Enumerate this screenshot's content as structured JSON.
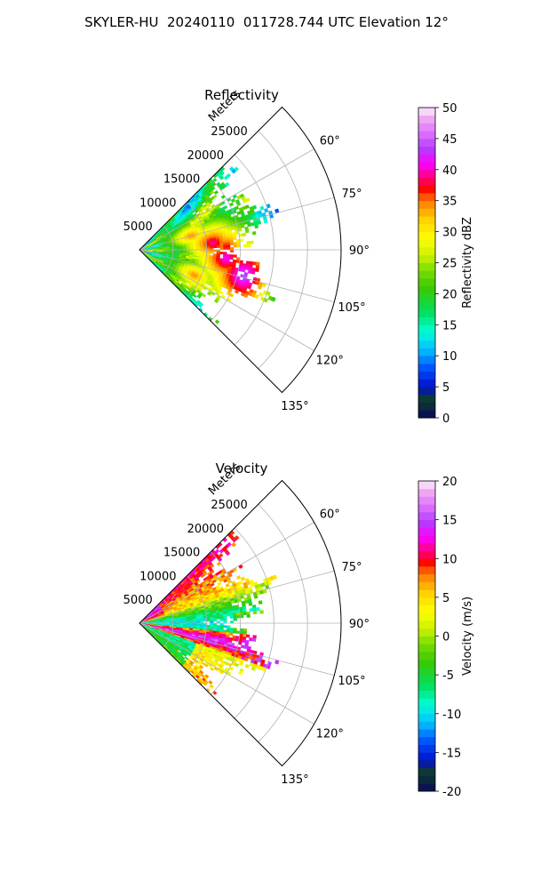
{
  "figure_title": "SKYLER-HU  20240110  011728.744 UTC Elevation 12°",
  "chart_data": [
    {
      "type": "heatmap",
      "subtype": "polar-sector radar PPI",
      "title": "Reflectivity",
      "range_label": "Meters",
      "range_ticks": [
        5000,
        10000,
        15000,
        20000,
        25000
      ],
      "range_max": 30000,
      "azimuth_range": [
        45,
        135
      ],
      "azimuth_ticks": [
        "60°",
        "75°",
        "90°",
        "105°",
        "120°",
        "135°"
      ],
      "grid": true,
      "colorbar": {
        "label": "Reflectivity dBZ",
        "range": [
          0,
          50
        ],
        "ticks": [
          "0",
          "5",
          "10",
          "15",
          "20",
          "25",
          "30",
          "35",
          "40",
          "45",
          "50"
        ],
        "stops": [
          [
            0,
            "#0a0a5a"
          ],
          [
            0.06,
            "#0f3b2a"
          ],
          [
            0.1,
            "#0010cc"
          ],
          [
            0.16,
            "#0050ff"
          ],
          [
            0.22,
            "#00bfff"
          ],
          [
            0.28,
            "#00ffd5"
          ],
          [
            0.34,
            "#00e060"
          ],
          [
            0.42,
            "#3cc800"
          ],
          [
            0.48,
            "#7ee000"
          ],
          [
            0.52,
            "#c8f000"
          ],
          [
            0.58,
            "#ffff00"
          ],
          [
            0.64,
            "#ffd000"
          ],
          [
            0.7,
            "#ff7a00"
          ],
          [
            0.74,
            "#ff0000"
          ],
          [
            0.77,
            "#ff0070"
          ],
          [
            0.82,
            "#ff00ff"
          ],
          [
            0.87,
            "#b040ff"
          ],
          [
            0.92,
            "#e070ff"
          ],
          [
            0.97,
            "#f0b0f0"
          ],
          [
            1,
            "#fff0ff"
          ]
        ]
      },
      "field": {
        "typical_value": "20-30 dBZ",
        "cores": [
          {
            "az": 75,
            "r": 8000,
            "v": 35
          },
          {
            "az": 85,
            "r": 11000,
            "v": 40
          },
          {
            "az": 88,
            "r": 13000,
            "v": 38
          },
          {
            "az": 96,
            "r": 13000,
            "v": 42
          },
          {
            "az": 104,
            "r": 16000,
            "v": 45
          },
          {
            "az": 115,
            "r": 9000,
            "v": 35
          }
        ]
      }
    },
    {
      "type": "heatmap",
      "subtype": "polar-sector radar PPI",
      "title": "Velocity",
      "range_label": "Meters",
      "range_ticks": [
        5000,
        10000,
        15000,
        20000,
        25000
      ],
      "range_max": 30000,
      "azimuth_range": [
        45,
        135
      ],
      "azimuth_ticks": [
        "60°",
        "75°",
        "90°",
        "105°",
        "120°",
        "135°"
      ],
      "grid": true,
      "colorbar": {
        "label": "Velocity (m/s)",
        "range": [
          -20,
          20
        ],
        "ticks": [
          "-20",
          "-15",
          "-10",
          "-5",
          "0",
          "5",
          "10",
          "15",
          "20"
        ],
        "stops": [
          [
            0,
            "#0a0a5a"
          ],
          [
            0.06,
            "#0f3b2a"
          ],
          [
            0.1,
            "#0010cc"
          ],
          [
            0.16,
            "#0050ff"
          ],
          [
            0.22,
            "#00bfff"
          ],
          [
            0.28,
            "#00ffd5"
          ],
          [
            0.34,
            "#00e060"
          ],
          [
            0.42,
            "#3cc800"
          ],
          [
            0.48,
            "#7ee000"
          ],
          [
            0.52,
            "#c8f000"
          ],
          [
            0.58,
            "#ffff00"
          ],
          [
            0.64,
            "#ffd000"
          ],
          [
            0.7,
            "#ff7a00"
          ],
          [
            0.74,
            "#ff0000"
          ],
          [
            0.77,
            "#ff0070"
          ],
          [
            0.82,
            "#ff00ff"
          ],
          [
            0.87,
            "#b040ff"
          ],
          [
            0.92,
            "#e070ff"
          ],
          [
            0.97,
            "#f0b0f0"
          ],
          [
            1,
            "#fff0ff"
          ]
        ]
      },
      "field": {
        "pattern": "dipole",
        "outbound_sector_az": [
          50,
          70
        ],
        "outbound_value": 10,
        "inbound_sector_az": [
          85,
          95
        ],
        "inbound_value": -10,
        "outbound_band_az": [
          100,
          108
        ],
        "outbound_band_value": 15,
        "near_range_low_az": [
          110,
          125
        ],
        "near_range_low_value": -8
      }
    }
  ]
}
